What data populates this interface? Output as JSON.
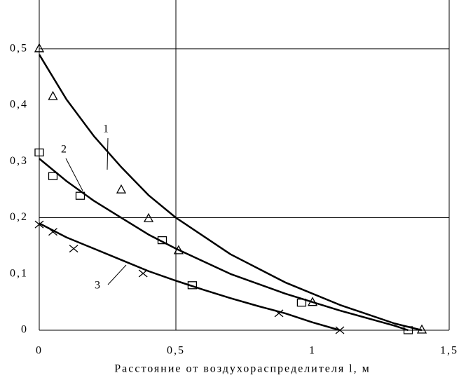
{
  "chart_data": {
    "type": "scatter",
    "x_label": "Расстояние от воздухораспределителя l, м",
    "xlim": [
      0,
      1.5
    ],
    "ylim": [
      0,
      0.587
    ],
    "xticks": [
      0,
      {
        "value": 0.5,
        "label": "0,5"
      },
      1,
      {
        "value": 1.5,
        "label": "1,5"
      }
    ],
    "yticks": [
      0,
      {
        "value": 0.1,
        "label": "0,1"
      },
      {
        "value": 0.2,
        "label": "0,2"
      },
      {
        "value": 0.3,
        "label": "0,3"
      },
      {
        "value": 0.4,
        "label": "0,4"
      },
      {
        "value": 0.5,
        "label": "0,5"
      }
    ],
    "xgrid": [
      0.5,
      1.5
    ],
    "ygrid": [
      0.2,
      0.5
    ],
    "series": [
      {
        "name": "1",
        "color": "#000000",
        "marker": "triangle",
        "x": [
          0,
          0.05,
          0.3,
          0.4,
          0.51,
          1.0,
          1.4
        ],
        "values": [
          0.5,
          0.415,
          0.249,
          0.198,
          0.141,
          0.049,
          0
        ],
        "curve_x": [
          0,
          0.1,
          0.2,
          0.3,
          0.4,
          0.5,
          0.7,
          0.9,
          1.1,
          1.3,
          1.4
        ],
        "curve_values": [
          0.49,
          0.41,
          0.345,
          0.29,
          0.24,
          0.2,
          0.135,
          0.085,
          0.045,
          0.012,
          0
        ]
      },
      {
        "name": "2",
        "color": "#000000",
        "marker": "square",
        "x": [
          0,
          0.05,
          0.15,
          0.45,
          0.56,
          0.96,
          1.35
        ],
        "values": [
          0.316,
          0.274,
          0.239,
          0.16,
          0.08,
          0.049,
          0
        ],
        "curve_x": [
          0,
          0.1,
          0.2,
          0.3,
          0.4,
          0.5,
          0.7,
          0.9,
          1.1,
          1.3,
          1.35
        ],
        "curve_values": [
          0.305,
          0.265,
          0.23,
          0.2,
          0.17,
          0.145,
          0.1,
          0.065,
          0.035,
          0.008,
          0
        ]
      },
      {
        "name": "3",
        "color": "#000000",
        "marker": "cross",
        "x": [
          0,
          0.05,
          0.126,
          0.38,
          0.877,
          1.1
        ],
        "values": [
          0.188,
          0.175,
          0.145,
          0.101,
          0.03,
          0
        ],
        "curve_x": [
          0,
          0.1,
          0.2,
          0.3,
          0.4,
          0.5,
          0.6,
          0.7,
          0.8,
          0.9,
          1.0,
          1.1
        ],
        "curve_values": [
          0.19,
          0.165,
          0.145,
          0.125,
          0.105,
          0.088,
          0.072,
          0.057,
          0.043,
          0.03,
          0.014,
          0
        ]
      }
    ]
  }
}
